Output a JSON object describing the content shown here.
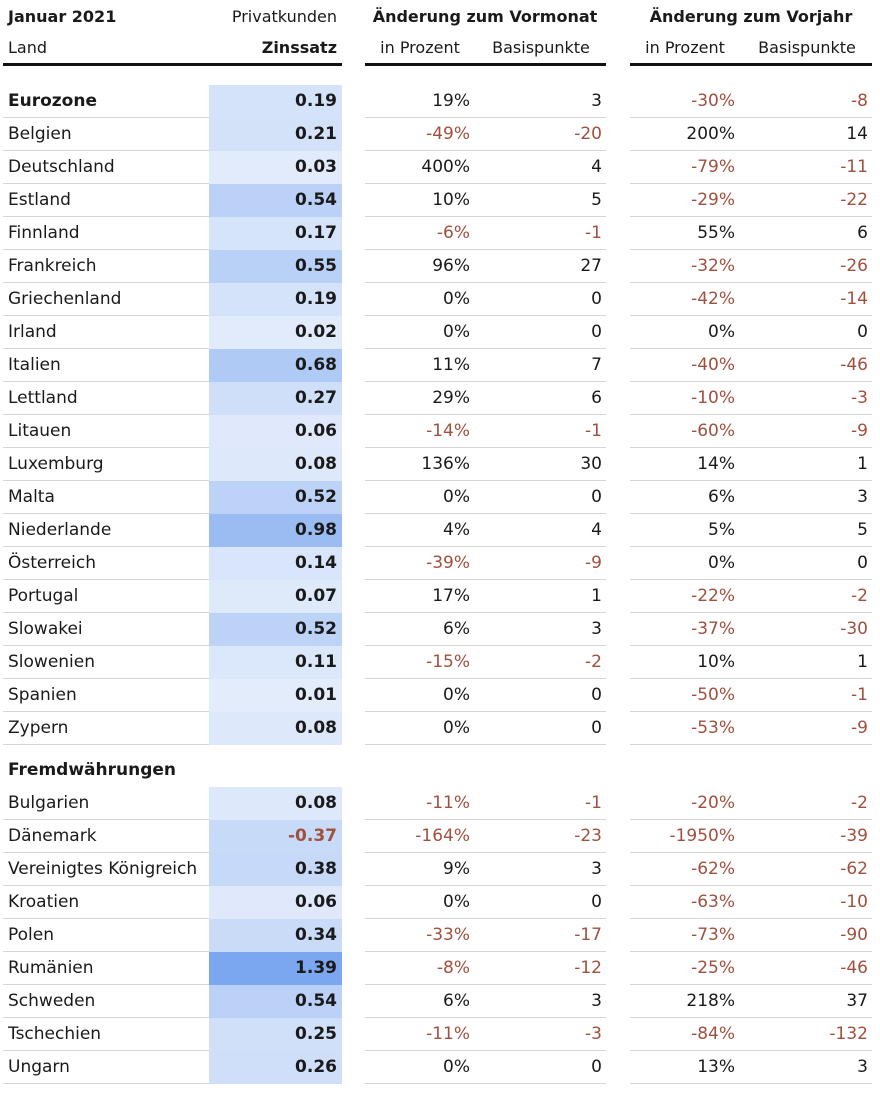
{
  "header": {
    "period": "Januar 2021",
    "segment": "Privatkunden",
    "col_country": "Land",
    "col_rate": "Zinssatz",
    "group_month": "Änderung zum Vormonat",
    "group_year": "Änderung zum Vorjahr",
    "sub_percent": "in Prozent",
    "sub_bp": "Basispunkte"
  },
  "colors": {
    "negative": "#a0503e",
    "rate_low": "#e3ecfb",
    "rate_high": "#7aa7f0"
  },
  "sections": [
    {
      "rows": [
        {
          "country": "Eurozone",
          "bold": true,
          "rate": "0.19",
          "mom_pct": "19%",
          "mom_bp": "3",
          "yoy_pct": "-30%",
          "yoy_bp": "-8"
        },
        {
          "country": "Belgien",
          "rate": "0.21",
          "mom_pct": "-49%",
          "mom_bp": "-20",
          "yoy_pct": "200%",
          "yoy_bp": "14"
        },
        {
          "country": "Deutschland",
          "rate": "0.03",
          "mom_pct": "400%",
          "mom_bp": "4",
          "yoy_pct": "-79%",
          "yoy_bp": "-11"
        },
        {
          "country": "Estland",
          "rate": "0.54",
          "mom_pct": "10%",
          "mom_bp": "5",
          "yoy_pct": "-29%",
          "yoy_bp": "-22"
        },
        {
          "country": "Finnland",
          "rate": "0.17",
          "mom_pct": "-6%",
          "mom_bp": "-1",
          "yoy_pct": "55%",
          "yoy_bp": "6"
        },
        {
          "country": "Frankreich",
          "rate": "0.55",
          "mom_pct": "96%",
          "mom_bp": "27",
          "yoy_pct": "-32%",
          "yoy_bp": "-26"
        },
        {
          "country": "Griechenland",
          "rate": "0.19",
          "mom_pct": "0%",
          "mom_bp": "0",
          "yoy_pct": "-42%",
          "yoy_bp": "-14"
        },
        {
          "country": "Irland",
          "rate": "0.02",
          "mom_pct": "0%",
          "mom_bp": "0",
          "yoy_pct": "0%",
          "yoy_bp": "0"
        },
        {
          "country": "Italien",
          "rate": "0.68",
          "mom_pct": "11%",
          "mom_bp": "7",
          "yoy_pct": "-40%",
          "yoy_bp": "-46"
        },
        {
          "country": "Lettland",
          "rate": "0.27",
          "mom_pct": "29%",
          "mom_bp": "6",
          "yoy_pct": "-10%",
          "yoy_bp": "-3"
        },
        {
          "country": "Litauen",
          "rate": "0.06",
          "mom_pct": "-14%",
          "mom_bp": "-1",
          "yoy_pct": "-60%",
          "yoy_bp": "-9"
        },
        {
          "country": "Luxemburg",
          "rate": "0.08",
          "mom_pct": "136%",
          "mom_bp": "30",
          "yoy_pct": "14%",
          "yoy_bp": "1"
        },
        {
          "country": "Malta",
          "rate": "0.52",
          "mom_pct": "0%",
          "mom_bp": "0",
          "yoy_pct": "6%",
          "yoy_bp": "3"
        },
        {
          "country": "Niederlande",
          "rate": "0.98",
          "mom_pct": "4%",
          "mom_bp": "4",
          "yoy_pct": "5%",
          "yoy_bp": "5"
        },
        {
          "country": "Österreich",
          "rate": "0.14",
          "mom_pct": "-39%",
          "mom_bp": "-9",
          "yoy_pct": "0%",
          "yoy_bp": "0"
        },
        {
          "country": "Portugal",
          "rate": "0.07",
          "mom_pct": "17%",
          "mom_bp": "1",
          "yoy_pct": "-22%",
          "yoy_bp": "-2"
        },
        {
          "country": "Slowakei",
          "rate": "0.52",
          "mom_pct": "6%",
          "mom_bp": "3",
          "yoy_pct": "-37%",
          "yoy_bp": "-30"
        },
        {
          "country": "Slowenien",
          "rate": "0.11",
          "mom_pct": "-15%",
          "mom_bp": "-2",
          "yoy_pct": "10%",
          "yoy_bp": "1"
        },
        {
          "country": "Spanien",
          "rate": "0.01",
          "mom_pct": "0%",
          "mom_bp": "0",
          "yoy_pct": "-50%",
          "yoy_bp": "-1"
        },
        {
          "country": "Zypern",
          "rate": "0.08",
          "mom_pct": "0%",
          "mom_bp": "0",
          "yoy_pct": "-53%",
          "yoy_bp": "-9"
        }
      ]
    },
    {
      "title": "Fremdwährungen",
      "rows": [
        {
          "country": "Bulgarien",
          "rate": "0.08",
          "mom_pct": "-11%",
          "mom_bp": "-1",
          "yoy_pct": "-20%",
          "yoy_bp": "-2"
        },
        {
          "country": "Dänemark",
          "rate": "-0.37",
          "mom_pct": "-164%",
          "mom_bp": "-23",
          "yoy_pct": "-1950%",
          "yoy_bp": "-39"
        },
        {
          "country": "Vereinigtes Königreich",
          "rate": "0.38",
          "mom_pct": "9%",
          "mom_bp": "3",
          "yoy_pct": "-62%",
          "yoy_bp": "-62"
        },
        {
          "country": "Kroatien",
          "rate": "0.06",
          "mom_pct": "0%",
          "mom_bp": "0",
          "yoy_pct": "-63%",
          "yoy_bp": "-10"
        },
        {
          "country": "Polen",
          "rate": "0.34",
          "mom_pct": "-33%",
          "mom_bp": "-17",
          "yoy_pct": "-73%",
          "yoy_bp": "-90"
        },
        {
          "country": "Rumänien",
          "rate": "1.39",
          "mom_pct": "-8%",
          "mom_bp": "-12",
          "yoy_pct": "-25%",
          "yoy_bp": "-46"
        },
        {
          "country": "Schweden",
          "rate": "0.54",
          "mom_pct": "6%",
          "mom_bp": "3",
          "yoy_pct": "218%",
          "yoy_bp": "37"
        },
        {
          "country": "Tschechien",
          "rate": "0.25",
          "mom_pct": "-11%",
          "mom_bp": "-3",
          "yoy_pct": "-84%",
          "yoy_bp": "-132"
        },
        {
          "country": "Ungarn",
          "rate": "0.26",
          "mom_pct": "0%",
          "mom_bp": "0",
          "yoy_pct": "13%",
          "yoy_bp": "3"
        }
      ]
    }
  ]
}
